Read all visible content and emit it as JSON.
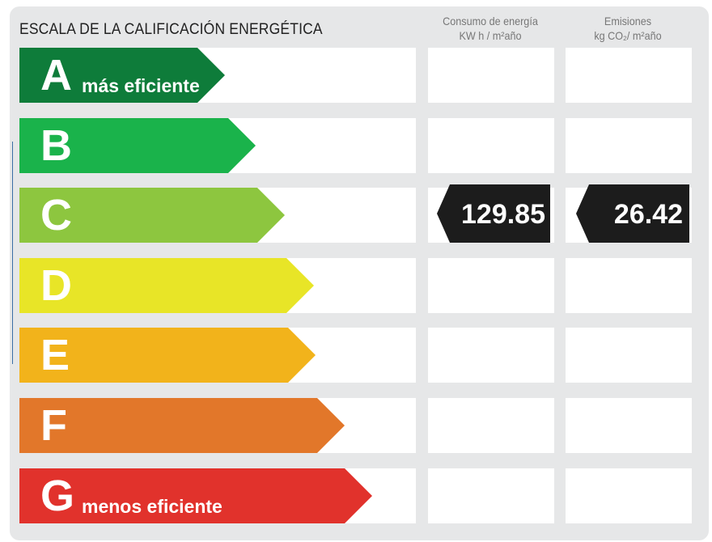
{
  "title": "ESCALA DE LA CALIFICACIÓN ENERGÉTICA",
  "columns": {
    "consumo": {
      "line1": "Consumo de energía",
      "line2": "KW h / m²año"
    },
    "emisiones": {
      "line1": "Emisiones",
      "line2": "kg CO₂/ m²año"
    }
  },
  "classes": [
    {
      "letter": "A",
      "note": "más eficiente",
      "color": "#0e7c3a"
    },
    {
      "letter": "B",
      "note": "",
      "color": "#1ab34b"
    },
    {
      "letter": "C",
      "note": "",
      "color": "#8dc63f"
    },
    {
      "letter": "D",
      "note": "",
      "color": "#e8e527"
    },
    {
      "letter": "E",
      "note": "",
      "color": "#f2b31b"
    },
    {
      "letter": "F",
      "note": "",
      "color": "#e2772a"
    },
    {
      "letter": "G",
      "note": "menos eficiente",
      "color": "#e1322c"
    }
  ],
  "rating": {
    "class": "C",
    "consumo": "129.85",
    "emisiones": "26.42",
    "badge_color": "#1c1c1c"
  }
}
